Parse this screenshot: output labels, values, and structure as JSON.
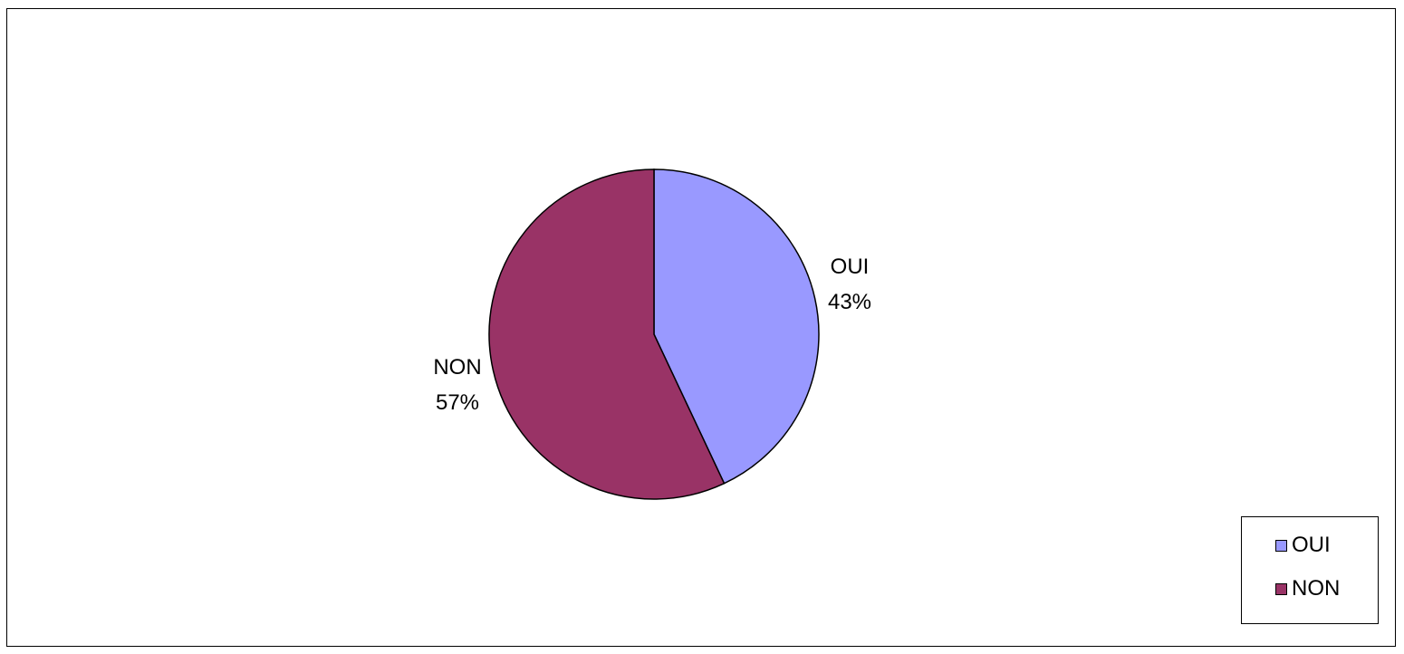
{
  "chart_data": {
    "type": "pie",
    "title": "",
    "categories": [
      "OUI",
      "NON"
    ],
    "values": [
      43,
      57
    ],
    "unit": "%",
    "colors": [
      "#9999FF",
      "#993366"
    ],
    "data_labels": [
      {
        "name": "OUI",
        "value": "43%"
      },
      {
        "name": "NON",
        "value": "57%"
      }
    ],
    "legend": {
      "placement": "bottom-right",
      "entries": [
        "OUI",
        "NON"
      ]
    }
  }
}
